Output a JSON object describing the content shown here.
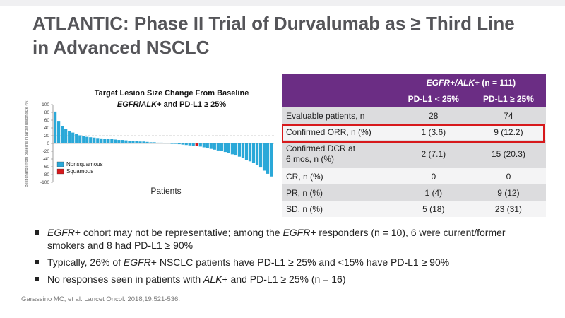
{
  "slide": {
    "title_line1": "ATLANTIC: Phase II Trial of Durvalumab as ≥ Third Line",
    "title_line2": "in Advanced NSCLC",
    "citation": "Garassino MC, et al. Lancet Oncol. 2018;19:521-536."
  },
  "chart_data": {
    "type": "bar",
    "title": "Target Lesion Size Change From Baseline",
    "subtitle_prefix": "EGFR",
    "subtitle_mid": "/",
    "subtitle_alk": "ALK",
    "subtitle_suffix": "+ and PD-L1 ≥ 25%",
    "xlabel": "Patients",
    "ylabel": "Best change from baseline in target lesion size (%)",
    "ylim": [
      -100,
      100
    ],
    "yticks": [
      "100",
      "80",
      "60",
      "40",
      "20",
      "0",
      "-20",
      "-40",
      "-60",
      "-80",
      "-100"
    ],
    "legend": [
      {
        "label": "Nonsquamous",
        "color": "#2aa8d8"
      },
      {
        "label": "Squamous",
        "color": "#d7191c"
      }
    ],
    "values": [
      82,
      58,
      45,
      38,
      32,
      28,
      24,
      21,
      19,
      17,
      16,
      15,
      14,
      13,
      12,
      11,
      11,
      10,
      9,
      9,
      8,
      7,
      7,
      6,
      5,
      5,
      4,
      3,
      3,
      2,
      2,
      1,
      1,
      0,
      -1,
      -2,
      -3,
      -4,
      -5,
      -6,
      -7,
      -8,
      -10,
      -12,
      -14,
      -16,
      -18,
      -20,
      -22,
      -25,
      -28,
      -31,
      -34,
      -38,
      -42,
      -46,
      -50,
      -55,
      -62,
      -70,
      -78,
      -85
    ],
    "histology": [
      "N",
      "N",
      "N",
      "N",
      "N",
      "N",
      "N",
      "N",
      "N",
      "N",
      "N",
      "N",
      "N",
      "N",
      "N",
      "N",
      "N",
      "N",
      "N",
      "N",
      "N",
      "N",
      "N",
      "N",
      "N",
      "N",
      "N",
      "N",
      "N",
      "N",
      "N",
      "N",
      "N",
      "N",
      "N",
      "N",
      "N",
      "N",
      "N",
      "N",
      "S",
      "N",
      "N",
      "N",
      "N",
      "N",
      "N",
      "N",
      "N",
      "N",
      "N",
      "N",
      "N",
      "N",
      "N",
      "N",
      "N",
      "N",
      "N",
      "N",
      "N",
      "N"
    ]
  },
  "table": {
    "group_header_prefix": "EGFR",
    "group_header_mid": "+/",
    "group_header_alk": "ALK",
    "group_header_suffix": "+ (n = 111)",
    "col1": "PD-L1 < 25%",
    "col2": "PD-L1 ≥ 25%",
    "rows": [
      {
        "label": "Evaluable patients, n",
        "v1": "28",
        "v2": "74"
      },
      {
        "label": "Confirmed ORR, n (%)",
        "v1": "1 (3.6)",
        "v2": "9 (12.2)"
      },
      {
        "label_line1": "Confirmed DCR at",
        "label_line2": "6 mos, n (%)",
        "v1": "2 (7.1)",
        "v2": "15 (20.3)"
      },
      {
        "label": "CR, n (%)",
        "v1": "0",
        "v2": "0"
      },
      {
        "label": "PR, n (%)",
        "v1": "1 (4)",
        "v2": "9 (12)"
      },
      {
        "label": "SD, n (%)",
        "v1": "5 (18)",
        "v2": "23 (31)"
      }
    ]
  },
  "bullets": [
    {
      "p1": "EGFR",
      "p2": "+ cohort may not be representative; among the ",
      "p3": "EGFR",
      "p4": "+ responders (n = 10), 6 were current/former smokers and 8 had PD-L1 ≥ 90%"
    },
    {
      "p1": "Typically, 26% of ",
      "p2": "EGFR",
      "p3": "+ NSCLC patients have PD-L1 ≥ 25% and <15% have PD-L1 ≥ 90%"
    },
    {
      "p1": "No responses seen in patients with ",
      "p2": "ALK",
      "p3": "+ and PD-L1 ≥ 25% (n = 16)"
    }
  ]
}
